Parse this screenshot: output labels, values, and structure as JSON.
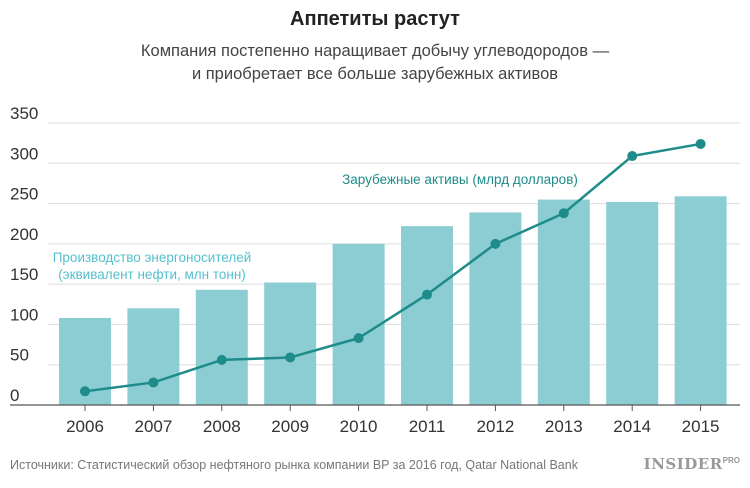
{
  "header": {
    "title": "Аппетиты растут",
    "subtitle_line1": "Компания постепенно наращивает добычу углеводородов —",
    "subtitle_line2": "и приобретает все больше зарубежных активов"
  },
  "footer": {
    "source": "Источники: Статистический обзор нефтяного рынка компании BP за 2016 год, Qatar National Bank",
    "logo_main": "INSIDER",
    "logo_sup": "PRO"
  },
  "colors": {
    "bar": "#8ccdd3",
    "line": "#1e8c8a",
    "bar_label": "#55c0cc",
    "grid": "#dddddd",
    "axis_text": "#333333"
  },
  "chart_data": {
    "type": "bar+line",
    "categories": [
      "2006",
      "2007",
      "2008",
      "2009",
      "2010",
      "2011",
      "2012",
      "2013",
      "2014",
      "2015"
    ],
    "ylim": [
      0,
      350
    ],
    "yticks": [
      0,
      50,
      100,
      150,
      200,
      250,
      300,
      350
    ],
    "series": [
      {
        "name": "Производство энергоносителей (эквивалент нефти, млн тонн)",
        "label_line1": "Производство энергоносителей",
        "label_line2": "(эквивалент нефти, млн тонн)",
        "type": "bar",
        "values": [
          108,
          120,
          143,
          152,
          200,
          222,
          239,
          255,
          252,
          259
        ]
      },
      {
        "name": "Зарубежные активы (млрд долларов)",
        "label_line1": "Зарубежные активы (млрд долларов)",
        "type": "line",
        "values": [
          17,
          28,
          56,
          59,
          83,
          137,
          200,
          238,
          309,
          324
        ]
      }
    ]
  }
}
